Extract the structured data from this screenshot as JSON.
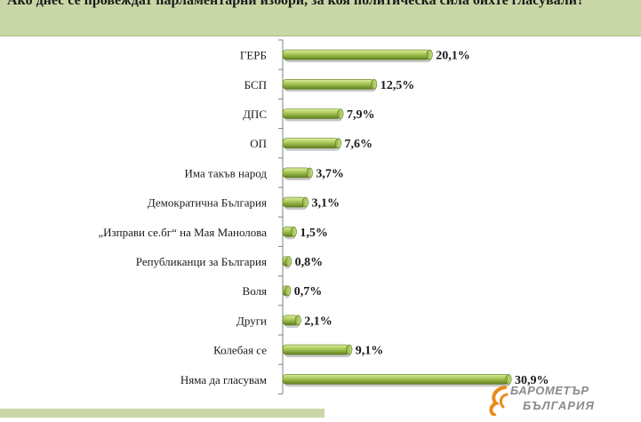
{
  "header": {
    "title": "Ако днес се провеждат парламентарни избори, за коя политическа сила бихте гласували?"
  },
  "logo": {
    "line1": "БАРОМЕТЪР",
    "line2": "БЪЛГАРИЯ"
  },
  "colors": {
    "bar_light": "#c4de7a",
    "bar_dark": "#6c8c24",
    "header_bg": "#c9d7a6"
  },
  "chart_data": {
    "type": "bar",
    "orientation": "horizontal",
    "categories": [
      "ГЕРБ",
      "БСП",
      "ДПС",
      "ОП",
      "Има такъв народ",
      "Демократична България",
      "„Изправи се.бг“ на Мая Манолова",
      "Републиканци за България",
      "Воля",
      "Други",
      "Колебая се",
      "Няма да гласувам"
    ],
    "values": [
      20.1,
      12.5,
      7.9,
      7.6,
      3.7,
      3.1,
      1.5,
      0.8,
      0.7,
      2.1,
      9.1,
      30.9
    ],
    "value_labels": [
      "20,1%",
      "12,5%",
      "7,9%",
      "7,6%",
      "3,7%",
      "3,1%",
      "1,5%",
      "0,8%",
      "0,7%",
      "2,1%",
      "9,1%",
      "30,9%"
    ],
    "xlim": [
      0,
      30.9
    ],
    "grid": false,
    "legend": "none"
  }
}
